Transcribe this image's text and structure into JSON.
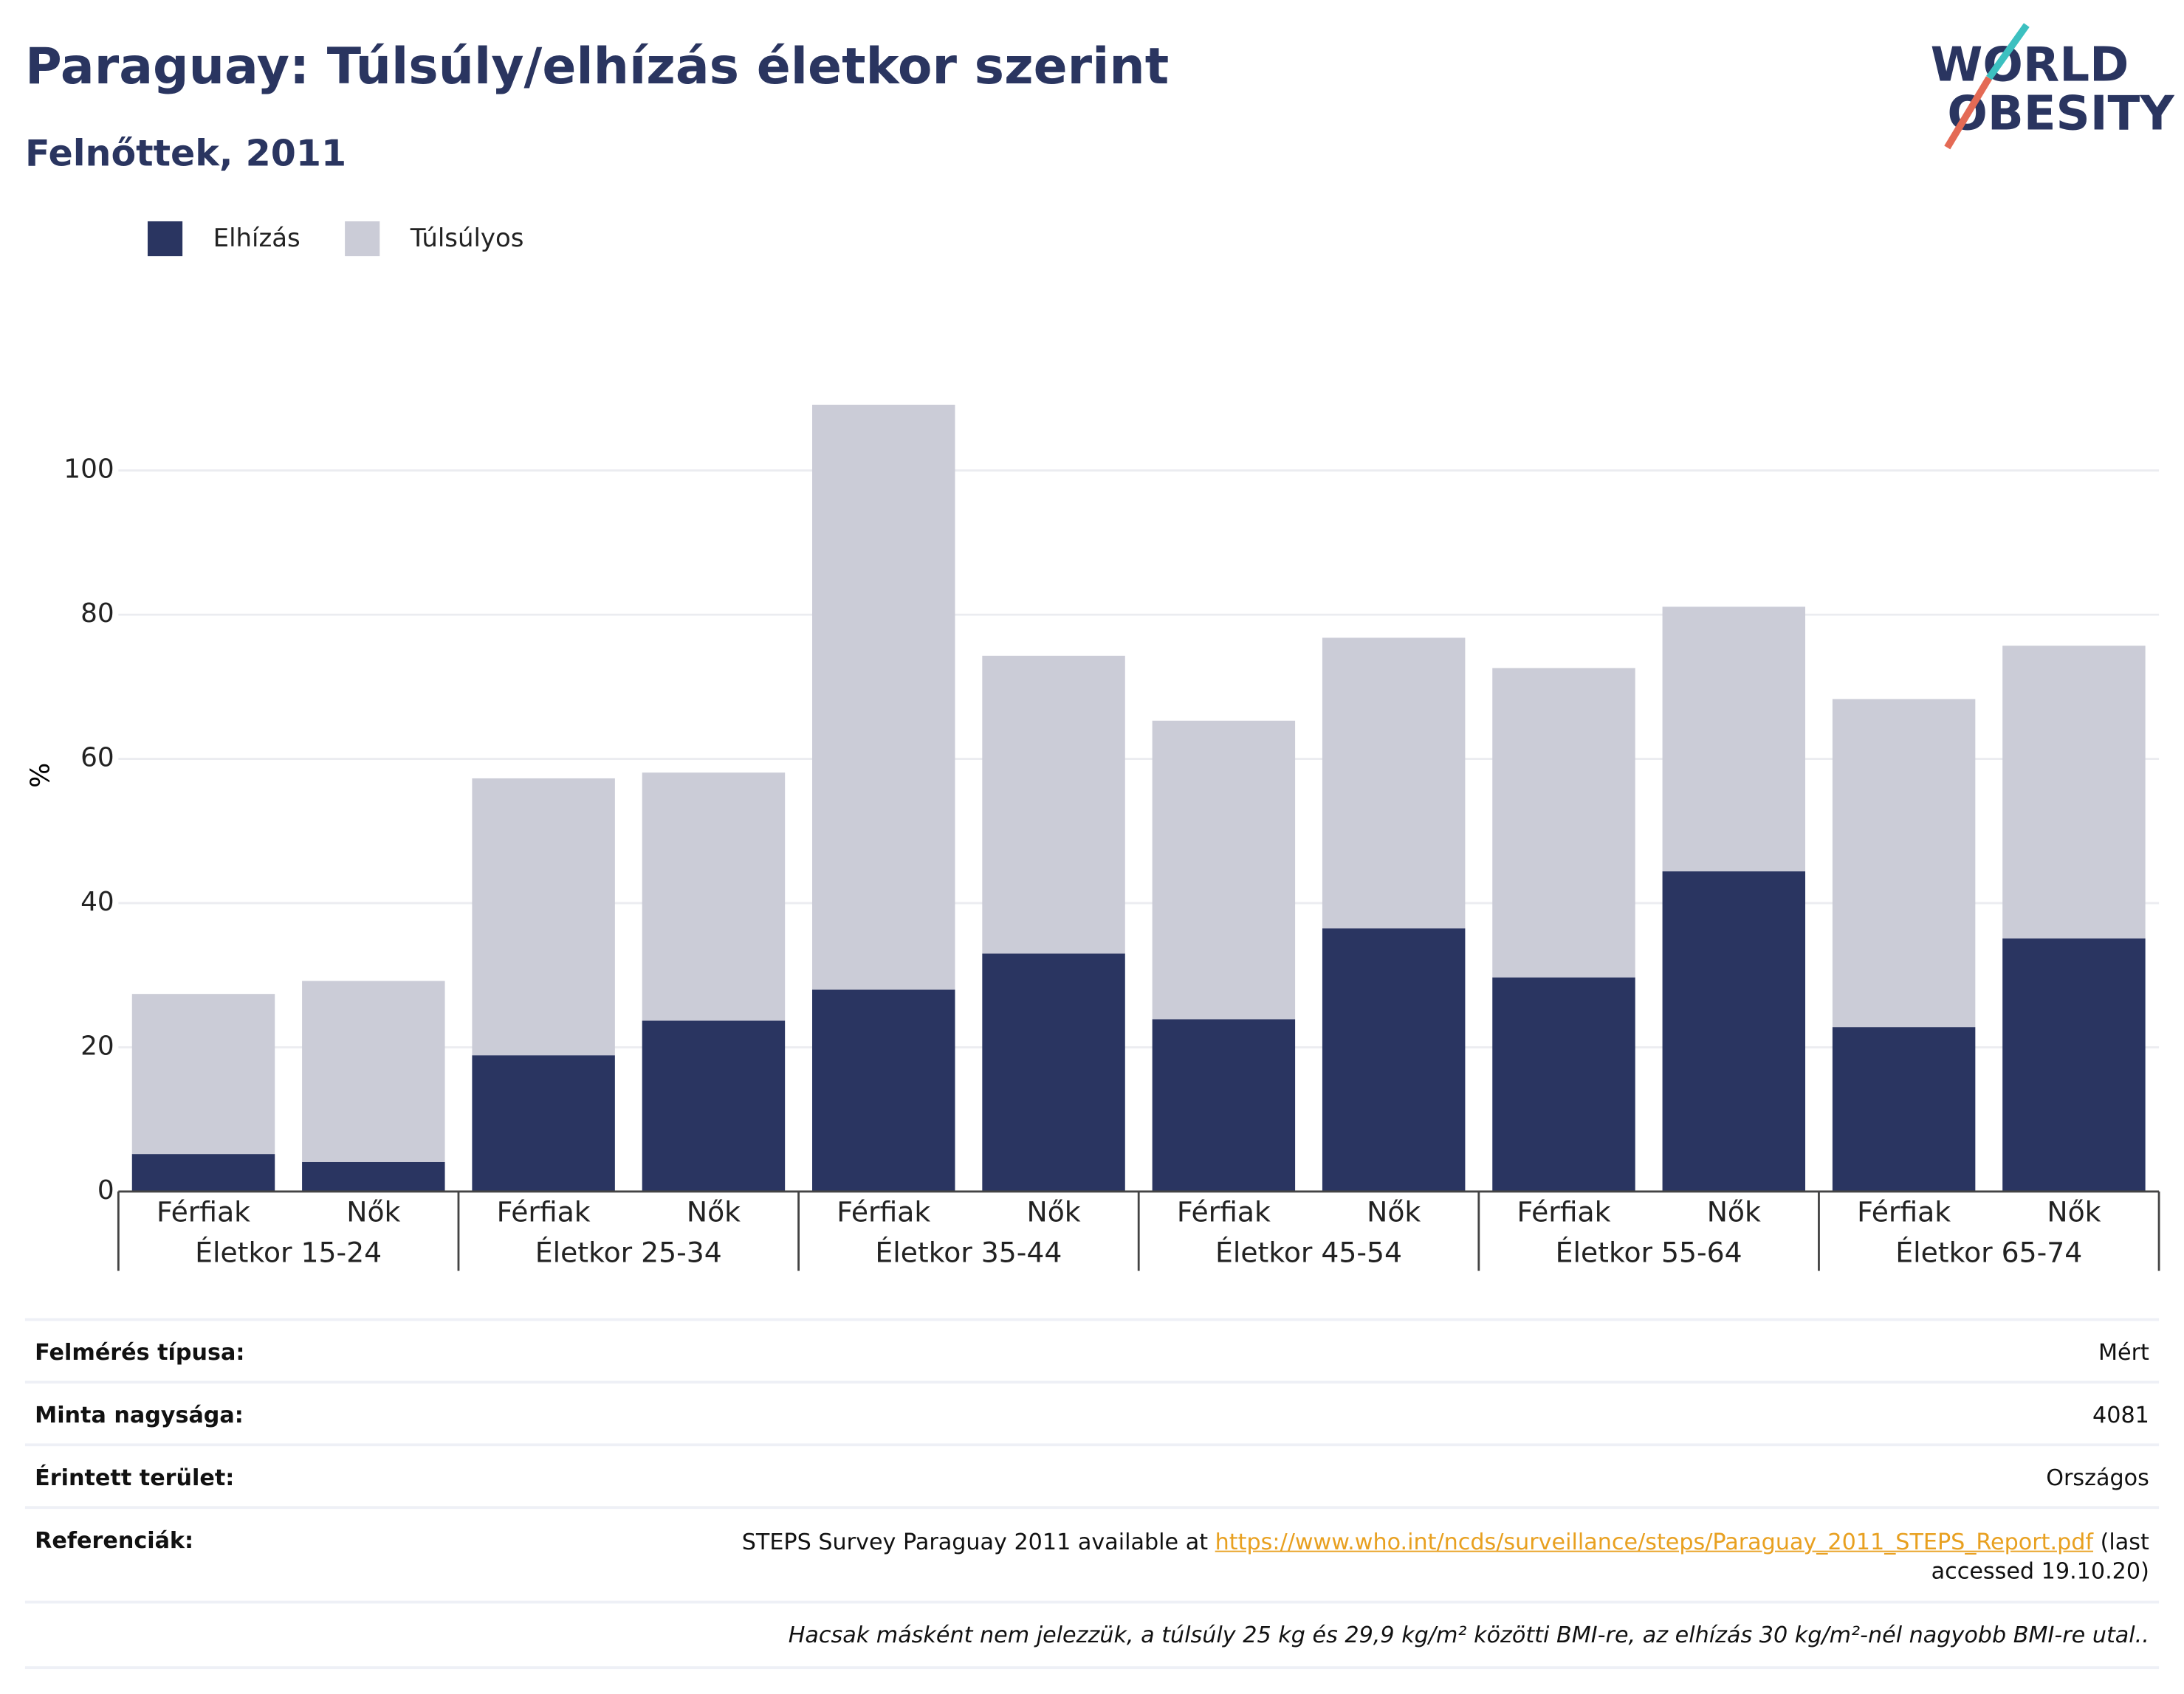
{
  "chart_data": {
    "type": "bar",
    "stacked": true,
    "title": "Paraguay: Túlsúly/elhízás életkor szerint",
    "subtitle": "Felnőttek, 2011",
    "y_label": "%",
    "categories": [
      "Férfiak",
      "Nők",
      "Férfiak",
      "Nők",
      "Férfiak",
      "Nők",
      "Férfiak",
      "Nők",
      "Férfiak",
      "Nők",
      "Férfiak",
      "Nők"
    ],
    "groups": [
      "Életkor 15-24",
      "Életkor 25-34",
      "Életkor 35-44",
      "Életkor 45-54",
      "Életkor 55-64",
      "Életkor 65-74"
    ],
    "series": [
      {
        "name": "Elhízás",
        "color": "#2a3561",
        "values": [
          5.2,
          4.1,
          18.9,
          23.7,
          28.0,
          33.0,
          23.9,
          36.5,
          29.7,
          44.4,
          22.8,
          35.1
        ]
      },
      {
        "name": "Túlsúlyos",
        "color": "#cbccd7",
        "values": [
          22.2,
          25.1,
          38.4,
          34.4,
          81.1,
          41.3,
          41.4,
          40.3,
          42.9,
          36.7,
          45.5,
          40.6
        ]
      }
    ],
    "ylim": [
      0,
      110
    ],
    "yticks": [
      0,
      20,
      40,
      60,
      80,
      100
    ],
    "grid": true,
    "legend": "top-left"
  },
  "logo": [
    "WORLD",
    "OBESITY"
  ],
  "table": {
    "rows": [
      {
        "label": "Felmérés típusa:",
        "value": "Mért"
      },
      {
        "label": "Minta nagysága:",
        "value": "4081"
      },
      {
        "label": "Érintett terület:",
        "value": "Országos"
      }
    ],
    "references": {
      "label": "Referenciák:",
      "prefix": "STEPS Survey Paraguay 2011 available at",
      "link": "https://www.who.int/ncds/surveillance/steps/Paraguay_2011_STEPS_Report.pdf",
      "suffix": "(last accessed 19.10.20)"
    },
    "note": "Hacsak másként nem jelezzük, a túlsúly 25 kg és 29,9 kg/m² közötti BMI-re, az elhízás 30 kg/m²-nél nagyobb BMI-re utal.."
  }
}
